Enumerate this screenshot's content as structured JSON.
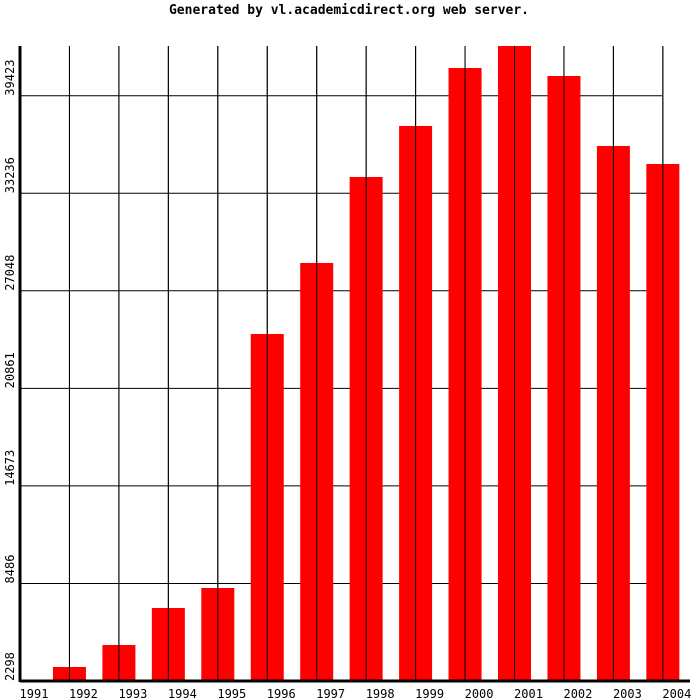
{
  "chart_data": {
    "type": "bar",
    "title": "Generated by vl.academicdirect.org web server.",
    "categories": [
      "1991",
      "1992",
      "1993",
      "1994",
      "1995",
      "1996",
      "1997",
      "1998",
      "1999",
      "2000",
      "2001",
      "2002",
      "2003",
      "2004"
    ],
    "values": [
      2298,
      3186,
      4581,
      6928,
      8197,
      24308,
      28812,
      34267,
      37502,
      41181,
      42575,
      40673,
      36233,
      35091
    ],
    "color": "#ff0000",
    "ylim": [
      2298,
      42575
    ],
    "yticks": [
      2298,
      8486,
      14673,
      20861,
      27048,
      33236,
      39423
    ],
    "grid": true
  }
}
